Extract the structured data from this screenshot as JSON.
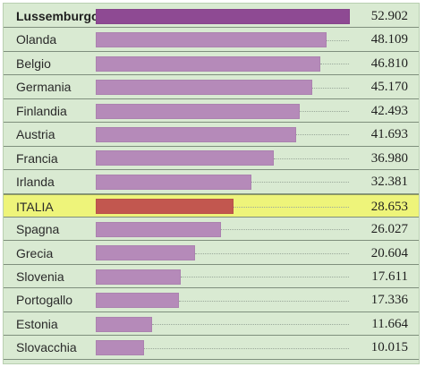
{
  "chart_data": {
    "type": "bar",
    "orientation": "horizontal",
    "categories": [
      "Lussemburgo",
      "Olanda",
      "Belgio",
      "Germania",
      "Finlandia",
      "Austria",
      "Francia",
      "Irlanda",
      "ITALIA",
      "Spagna",
      "Grecia",
      "Slovenia",
      "Portogallo",
      "Estonia",
      "Slovacchia"
    ],
    "values": [
      52902,
      48109,
      46810,
      45170,
      42493,
      41693,
      36980,
      32381,
      28653,
      26027,
      20604,
      17611,
      17336,
      11664,
      10015
    ],
    "value_labels": [
      "52.902",
      "48.109",
      "46.810",
      "45.170",
      "42.493",
      "41.693",
      "36.980",
      "32.381",
      "28.653",
      "26.027",
      "20.604",
      "17.611",
      "17.336",
      "11.664",
      "10.015"
    ],
    "highlight_category": "ITALIA",
    "top_category": "Lussemburgo",
    "grid": false,
    "colors": {
      "background": "#d9ead2",
      "bar": "#b58ab9",
      "bar_top": "#8e4a93",
      "bar_highlight": "#c2574f",
      "row_highlight": "#eef47a"
    }
  }
}
